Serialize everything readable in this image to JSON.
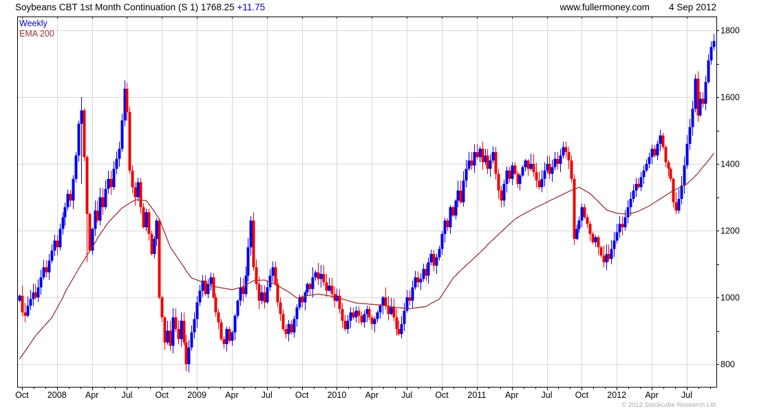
{
  "header": {
    "title": "Soybeans CBT 1st Month Continuation (S 1) 1768.25",
    "change": "+11.75",
    "website": "www.fullermoney.com",
    "date": "4 Sep 2012"
  },
  "legend": {
    "series_label": "Weekly",
    "ema_label": "EMA 200"
  },
  "footer": {
    "copyright": "© 2012 Stockcube Research Ltd"
  },
  "chart_data": {
    "type": "candlestick",
    "title": "Soybeans CBT 1st Month Continuation (S 1)",
    "frequency": "weekly",
    "last_price": 1768.25,
    "change": 11.75,
    "overlay": "EMA 200",
    "x_range": "Oct 2007 - Sep 2012",
    "ylim": [
      732,
      1841
    ],
    "grid": true,
    "legend_position": "top-left",
    "y_ticks": [
      1800,
      1600,
      1400,
      1200,
      1000,
      800
    ],
    "y_minor_step": 100,
    "x_ticks": [
      {
        "label": "Oct",
        "m": 0
      },
      {
        "label": "2008",
        "m": 3
      },
      {
        "label": "Apr",
        "m": 6
      },
      {
        "label": "Jul",
        "m": 9
      },
      {
        "label": "Oct",
        "m": 12
      },
      {
        "label": "2009",
        "m": 15
      },
      {
        "label": "Apr",
        "m": 18
      },
      {
        "label": "Jul",
        "m": 21
      },
      {
        "label": "Oct",
        "m": 24
      },
      {
        "label": "2010",
        "m": 27
      },
      {
        "label": "Apr",
        "m": 30
      },
      {
        "label": "Jul",
        "m": 33
      },
      {
        "label": "Oct",
        "m": 36
      },
      {
        "label": "2011",
        "m": 39
      },
      {
        "label": "Apr",
        "m": 42
      },
      {
        "label": "Jul",
        "m": 45
      },
      {
        "label": "Oct",
        "m": 48
      },
      {
        "label": "2012",
        "m": 51
      },
      {
        "label": "Apr",
        "m": 54
      },
      {
        "label": "Jul",
        "m": 57
      }
    ],
    "weekly_closes": [
      1005,
      955,
      945,
      975,
      995,
      1015,
      1000,
      1030,
      1060,
      1090,
      1075,
      1110,
      1140,
      1170,
      1150,
      1205,
      1240,
      1270,
      1310,
      1290,
      1355,
      1425,
      1520,
      1560,
      1420,
      1250,
      1140,
      1205,
      1260,
      1230,
      1300,
      1270,
      1325,
      1355,
      1330,
      1385,
      1415,
      1445,
      1530,
      1625,
      1555,
      1380,
      1330,
      1300,
      1345,
      1270,
      1210,
      1255,
      1190,
      1130,
      1175,
      1230,
      1000,
      940,
      865,
      900,
      855,
      940,
      905,
      875,
      930,
      865,
      800,
      850,
      895,
      935,
      985,
      1020,
      1050,
      1010,
      1040,
      1060,
      1000,
      955,
      925,
      875,
      860,
      905,
      870,
      895,
      945,
      990,
      1030,
      1010,
      1065,
      1150,
      1230,
      1090,
      1040,
      990,
      1015,
      985,
      1030,
      1065,
      1090,
      1040,
      985,
      950,
      905,
      890,
      920,
      895,
      935,
      970,
      1000,
      985,
      1015,
      1040,
      1025,
      1060,
      1075,
      1055,
      1070,
      1045,
      1020,
      1035,
      1010,
      990,
      1005,
      965,
      930,
      905,
      930,
      955,
      940,
      960,
      945,
      925,
      950,
      965,
      940,
      920,
      935,
      955,
      975,
      1000,
      975,
      950,
      970,
      940,
      905,
      890,
      920,
      960,
      1000,
      990,
      1030,
      1060,
      1045,
      1055,
      1085,
      1065,
      1105,
      1130,
      1095,
      1120,
      1145,
      1190,
      1230,
      1210,
      1270,
      1245,
      1290,
      1320,
      1285,
      1350,
      1385,
      1410,
      1395,
      1435,
      1420,
      1445,
      1405,
      1425,
      1385,
      1410,
      1435,
      1370,
      1320,
      1290,
      1340,
      1380,
      1355,
      1395,
      1370,
      1340,
      1365,
      1390,
      1410,
      1385,
      1400,
      1375,
      1350,
      1330,
      1355,
      1380,
      1400,
      1370,
      1390,
      1415,
      1400,
      1425,
      1450,
      1435,
      1410,
      1355,
      1175,
      1205,
      1230,
      1270,
      1240,
      1220,
      1190,
      1165,
      1180,
      1150,
      1125,
      1105,
      1130,
      1115,
      1145,
      1170,
      1195,
      1220,
      1210,
      1240,
      1270,
      1295,
      1320,
      1340,
      1330,
      1360,
      1380,
      1400,
      1420,
      1445,
      1425,
      1460,
      1485,
      1450,
      1405,
      1385,
      1355,
      1285,
      1260,
      1295,
      1335,
      1395,
      1460,
      1510,
      1565,
      1655,
      1545,
      1595,
      1580,
      1645,
      1710,
      1750,
      1768
    ],
    "wick_overrides": {
      "23": [
        1600,
        1340
      ],
      "25": [
        null,
        1105
      ],
      "39": [
        1650,
        null
      ],
      "62": [
        null,
        779
      ],
      "86": [
        1243,
        null
      ],
      "110": [
        1082,
        null
      ],
      "171": [
        1452,
        null
      ],
      "179": [
        null,
        1270
      ],
      "202": [
        1466,
        null
      ],
      "206": [
        null,
        1157
      ],
      "238": [
        1502,
        null
      ],
      "244": [
        null,
        1249
      ],
      "251": [
        1668,
        null
      ],
      "258": [
        1789,
        1740
      ]
    },
    "ema_points": [
      [
        0,
        815
      ],
      [
        5,
        875
      ],
      [
        12,
        940
      ],
      [
        18,
        1030
      ],
      [
        23,
        1100
      ],
      [
        28,
        1165
      ],
      [
        33,
        1225
      ],
      [
        38,
        1268
      ],
      [
        43,
        1292
      ],
      [
        47,
        1290
      ],
      [
        52,
        1235
      ],
      [
        56,
        1150
      ],
      [
        61,
        1090
      ],
      [
        64,
        1058
      ],
      [
        72,
        1033
      ],
      [
        79,
        1023
      ],
      [
        83,
        1032
      ],
      [
        87,
        1050
      ],
      [
        91,
        1052
      ],
      [
        96,
        1035
      ],
      [
        100,
        1016
      ],
      [
        103,
        998
      ],
      [
        107,
        1005
      ],
      [
        111,
        1010
      ],
      [
        118,
        1000
      ],
      [
        125,
        983
      ],
      [
        134,
        977
      ],
      [
        140,
        970
      ],
      [
        145,
        966
      ],
      [
        151,
        973
      ],
      [
        156,
        995
      ],
      [
        161,
        1058
      ],
      [
        169,
        1119
      ],
      [
        177,
        1181
      ],
      [
        184,
        1235
      ],
      [
        192,
        1270
      ],
      [
        200,
        1301
      ],
      [
        205,
        1321
      ],
      [
        208,
        1330
      ],
      [
        212,
        1311
      ],
      [
        218,
        1262
      ],
      [
        222,
        1252
      ],
      [
        226,
        1249
      ],
      [
        230,
        1258
      ],
      [
        234,
        1274
      ],
      [
        241,
        1311
      ],
      [
        248,
        1340
      ],
      [
        252,
        1372
      ],
      [
        255,
        1400
      ],
      [
        258,
        1432
      ]
    ],
    "colors": {
      "up": "#0000ee",
      "down": "#ee0000",
      "ema": "#993333",
      "grid": "#d8d8d8",
      "axis": "#000000",
      "accent_text": "#0000cc",
      "copyright_text": "#a8a8a8"
    }
  }
}
